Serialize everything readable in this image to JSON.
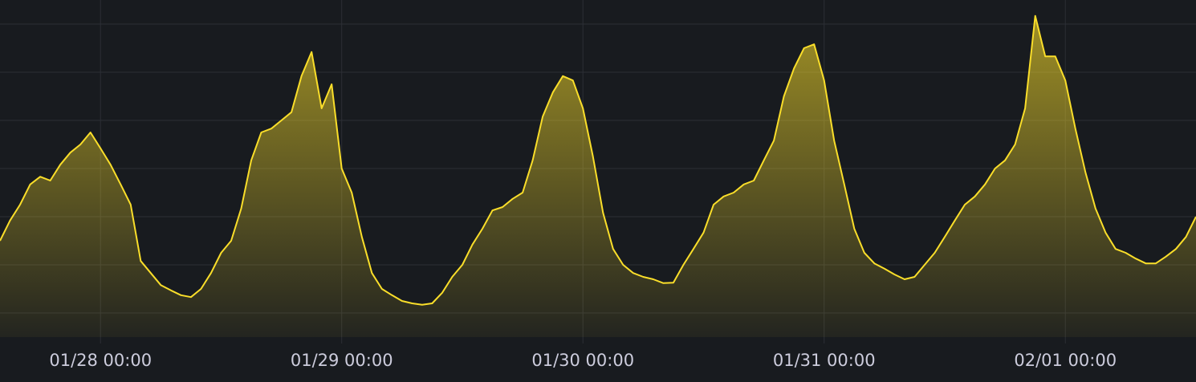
{
  "chart_data": {
    "type": "area",
    "color": "#fade2a",
    "grid": true,
    "x": [
      "01/27 14:00",
      "01/27 15:00",
      "01/27 16:00",
      "01/27 17:00",
      "01/27 18:00",
      "01/27 19:00",
      "01/27 20:00",
      "01/27 21:00",
      "01/27 22:00",
      "01/27 23:00",
      "01/28 00:00",
      "01/28 01:00",
      "01/28 02:00",
      "01/28 03:00",
      "01/28 04:00",
      "01/28 05:00",
      "01/28 06:00",
      "01/28 07:00",
      "01/28 08:00",
      "01/28 09:00",
      "01/28 10:00",
      "01/28 11:00",
      "01/28 12:00",
      "01/28 13:00",
      "01/28 14:00",
      "01/28 15:00",
      "01/28 16:00",
      "01/28 17:00",
      "01/28 18:00",
      "01/28 19:00",
      "01/28 20:00",
      "01/28 21:00",
      "01/28 22:00",
      "01/28 23:00",
      "01/29 00:00",
      "01/29 01:00",
      "01/29 02:00",
      "01/29 03:00",
      "01/29 04:00",
      "01/29 05:00",
      "01/29 06:00",
      "01/29 07:00",
      "01/29 08:00",
      "01/29 09:00",
      "01/29 10:00",
      "01/29 11:00",
      "01/29 12:00",
      "01/29 13:00",
      "01/29 14:00",
      "01/29 15:00",
      "01/29 16:00",
      "01/29 17:00",
      "01/29 18:00",
      "01/29 19:00",
      "01/29 20:00",
      "01/29 21:00",
      "01/29 22:00",
      "01/29 23:00",
      "01/30 00:00",
      "01/30 01:00",
      "01/30 02:00",
      "01/30 03:00",
      "01/30 04:00",
      "01/30 05:00",
      "01/30 06:00",
      "01/30 07:00",
      "01/30 08:00",
      "01/30 09:00",
      "01/30 10:00",
      "01/30 11:00",
      "01/30 12:00",
      "01/30 13:00",
      "01/30 14:00",
      "01/30 15:00",
      "01/30 16:00",
      "01/30 17:00",
      "01/30 18:00",
      "01/30 19:00",
      "01/30 20:00",
      "01/30 21:00",
      "01/30 22:00",
      "01/30 23:00",
      "01/31 00:00",
      "01/31 01:00",
      "01/31 02:00",
      "01/31 03:00",
      "01/31 04:00",
      "01/31 05:00",
      "01/31 06:00",
      "01/31 07:00",
      "01/31 08:00",
      "01/31 09:00",
      "01/31 10:00",
      "01/31 11:00",
      "01/31 12:00",
      "01/31 13:00",
      "01/31 14:00",
      "01/31 15:00",
      "01/31 16:00",
      "01/31 17:00",
      "01/31 18:00",
      "01/31 19:00",
      "01/31 20:00",
      "01/31 21:00",
      "01/31 22:00",
      "01/31 23:00",
      "02/01 00:00",
      "02/01 01:00",
      "02/01 02:00",
      "02/01 03:00",
      "02/01 04:00",
      "02/01 05:00",
      "02/01 06:00",
      "02/01 07:00",
      "02/01 08:00",
      "02/01 09:00",
      "02/01 10:00",
      "02/01 11:00",
      "02/01 12:00",
      "02/01 13:00"
    ],
    "values": [
      2.5,
      2.92,
      3.25,
      3.67,
      3.83,
      3.75,
      4.08,
      4.33,
      4.5,
      4.75,
      4.42,
      4.08,
      3.67,
      3.25,
      2.08,
      1.83,
      1.58,
      1.47,
      1.37,
      1.33,
      1.5,
      1.83,
      2.25,
      2.5,
      3.17,
      4.17,
      4.75,
      4.83,
      5,
      5.17,
      5.92,
      6.42,
      5.25,
      5.75,
      4,
      3.5,
      2.58,
      1.83,
      1.5,
      1.37,
      1.25,
      1.2,
      1.17,
      1.2,
      1.42,
      1.75,
      2,
      2.42,
      2.75,
      3.13,
      3.2,
      3.37,
      3.5,
      4.17,
      5.08,
      5.58,
      5.92,
      5.83,
      5.25,
      4.25,
      3.08,
      2.33,
      2,
      1.83,
      1.75,
      1.7,
      1.62,
      1.63,
      2,
      2.33,
      2.67,
      3.25,
      3.42,
      3.5,
      3.67,
      3.75,
      4.17,
      4.58,
      5.5,
      6.08,
      6.5,
      6.58,
      5.83,
      4.58,
      3.67,
      2.75,
      2.25,
      2.03,
      1.92,
      1.8,
      1.7,
      1.75,
      2,
      2.25,
      2.58,
      2.92,
      3.25,
      3.42,
      3.67,
      4,
      4.17,
      4.5,
      5.25,
      7.17,
      6.33,
      6.33,
      5.83,
      4.83,
      3.92,
      3.17,
      2.67,
      2.33,
      2.25,
      2.13,
      2.03,
      2.03,
      2.17,
      2.33,
      2.58,
      3
    ],
    "xlim": [
      "01/27 14:00",
      "02/01 13:00"
    ],
    "xticks": [
      "01/28 00:00",
      "01/29 00:00",
      "01/30 00:00",
      "01/31 00:00",
      "02/01 00:00"
    ],
    "ylim": [
      0.5,
      7.5
    ],
    "yticks": [
      1,
      2,
      3,
      4,
      5,
      6,
      7
    ]
  }
}
